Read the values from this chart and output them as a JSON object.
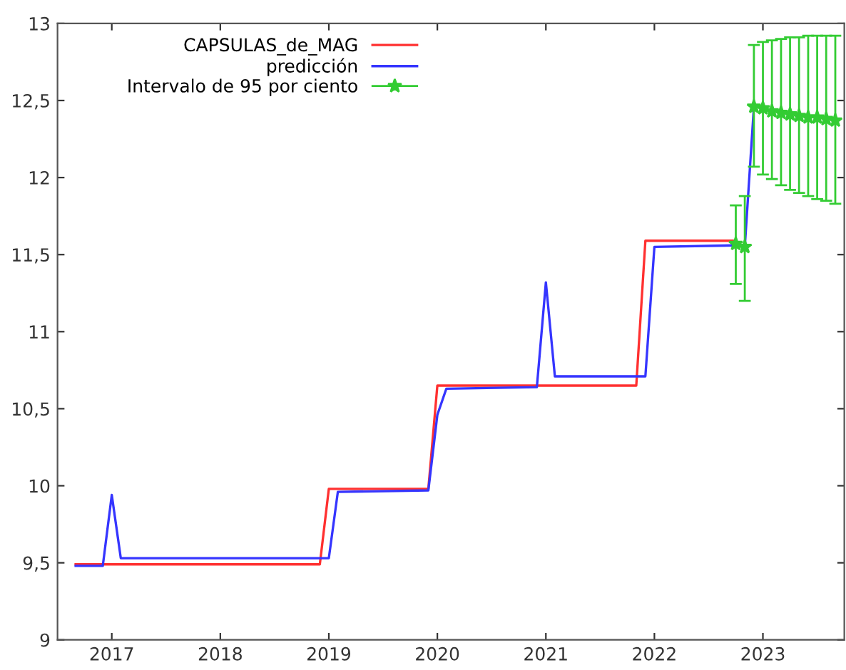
{
  "chart_data": {
    "type": "line",
    "xlim": [
      2016.5,
      2023.75
    ],
    "xticks": [
      2017,
      2018,
      2019,
      2020,
      2021,
      2022,
      2023
    ],
    "ylim": [
      9,
      13
    ],
    "yticks": [
      9,
      {
        "value": 9.5,
        "label": "9,5"
      },
      10,
      {
        "value": 10.5,
        "label": "10,5"
      },
      11,
      {
        "value": 11.5,
        "label": "11,5"
      },
      12,
      {
        "value": 12.5,
        "label": "12,5"
      },
      13
    ],
    "grid": false,
    "legend": "top left",
    "series": [
      {
        "name": "CAPSULAS_de_MAG",
        "color": "#ff3030",
        "x": [
          2016.667,
          2018.917,
          2019.0,
          2019.917,
          2020.0,
          2021.833,
          2021.917,
          2022.75
        ],
        "values": [
          9.49,
          9.49,
          9.98,
          9.98,
          10.65,
          10.65,
          11.59,
          11.59
        ]
      },
      {
        "name": "predicción",
        "color": "#3535ff",
        "x": [
          2016.667,
          2016.917,
          2017.0,
          2017.083,
          2019.0,
          2019.083,
          2019.917,
          2020.0,
          2020.083,
          2020.917,
          2021.0,
          2021.083,
          2021.917,
          2022.0,
          2022.75,
          2022.833,
          2022.917
        ],
        "values": [
          9.48,
          9.48,
          9.94,
          9.53,
          9.53,
          9.96,
          9.97,
          10.46,
          10.63,
          10.64,
          11.32,
          10.71,
          10.71,
          11.55,
          11.56,
          11.55,
          12.46
        ]
      },
      {
        "name": "Intervalo de 95 por ciento",
        "type": "scatter",
        "marker": "star",
        "color": "#33cc33",
        "x": [
          2022.75,
          2022.833,
          2022.917,
          2023.0,
          2023.083,
          2023.167,
          2023.25,
          2023.333,
          2023.417,
          2023.5,
          2023.583,
          2023.667
        ],
        "values": [
          11.57,
          11.55,
          12.46,
          12.45,
          12.43,
          12.42,
          12.41,
          12.4,
          12.39,
          12.39,
          12.38,
          12.37
        ],
        "errors": [
          [
            11.31,
            11.82
          ],
          [
            11.2,
            11.88
          ],
          [
            12.07,
            12.86
          ],
          [
            12.02,
            12.88
          ],
          [
            11.99,
            12.89
          ],
          [
            11.95,
            12.9
          ],
          [
            11.92,
            12.91
          ],
          [
            11.9,
            12.91
          ],
          [
            11.88,
            12.92
          ],
          [
            11.86,
            12.92
          ],
          [
            11.85,
            12.92
          ],
          [
            11.83,
            12.92
          ]
        ]
      }
    ]
  }
}
